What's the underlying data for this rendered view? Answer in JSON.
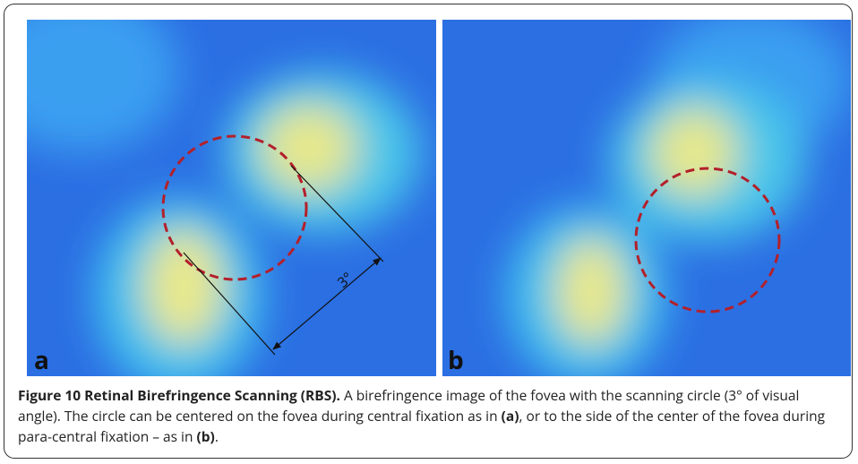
{
  "figure": {
    "panels": [
      {
        "label": "a"
      },
      {
        "label": "b"
      }
    ],
    "annotation": "3°",
    "caption": {
      "title": "Figure 10 Retinal Birefringence Scanning (RBS).",
      "text_1": " A birefringence image of the fovea with the scanning circle (3° of visual angle). The circle can be centered on the fovea during central fixation as in ",
      "ref_a": "(a)",
      "text_2": ", or to the side of the center of the fovea during para-central fixation – as in ",
      "ref_b": "(b)",
      "text_3": "."
    }
  }
}
